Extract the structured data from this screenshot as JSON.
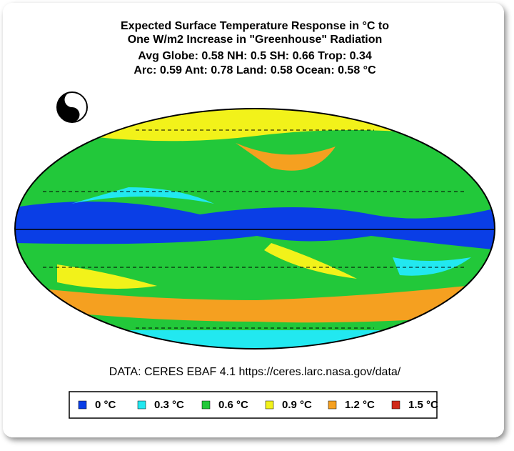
{
  "header": {
    "title_lines": [
      "Expected Surface Temperature Response in °C to",
      "One W/m2 Increase in \"Greenhouse\" Radiation"
    ],
    "stats_lines": [
      "Avg Globe: 0.58  NH: 0.5  SH: 0.66  Trop: 0.34",
      "Arc: 0.59  Ant: 0.78  Land: 0.58 Ocean: 0.58 °C"
    ]
  },
  "source": "DATA: CERES EBAF 4.1 https://ceres.larc.nasa.gov/data/",
  "legend": {
    "items": [
      {
        "label": "0 °C",
        "color": "#0a3ee6"
      },
      {
        "label": "0.3 °C",
        "color": "#22e8f0"
      },
      {
        "label": "0.6 °C",
        "color": "#22c83a"
      },
      {
        "label": "0.9 °C",
        "color": "#f2f21a"
      },
      {
        "label": "1.2 °C",
        "color": "#f5a020"
      },
      {
        "label": "1.5 °C",
        "color": "#d02a1a"
      }
    ]
  }
}
